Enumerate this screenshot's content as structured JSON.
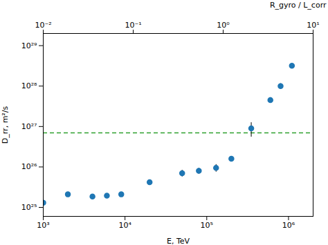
{
  "chart_data": {
    "type": "scatter",
    "xlabel": "E, TeV",
    "ylabel": "D_rr, m²/s",
    "x2label": "R_gyro / L_corr",
    "x": [
      1000,
      2000,
      4000,
      6000,
      9000,
      20000,
      50000,
      80000,
      130000,
      200000,
      350000,
      600000,
      800000,
      1100000
    ],
    "values": [
      1.3e+25,
      2.1e+25,
      1.85e+25,
      1.95e+25,
      2.1e+25,
      4.2e+25,
      7e+25,
      8e+25,
      9.5e+25,
      1.6e+26,
      9e+26,
      4.5e+27,
      1e+28,
      3.2e+28
    ],
    "error_bars": {
      "lo": [
        1.2e+24,
        2e+24,
        2e+24,
        2e+24,
        2e+24,
        5e+24,
        1.3e+25,
        1.3e+25,
        2e+25,
        2e+25,
        3.5e+26,
        7e+26,
        1.5e+27,
        4e+27
      ],
      "hi": [
        1.2e+24,
        2e+24,
        2e+24,
        2e+24,
        2e+24,
        5e+24,
        1.3e+25,
        1.3e+25,
        2e+25,
        2e+25,
        3.5e+26,
        7e+26,
        1.5e+27,
        4e+27
      ],
      "color": "#000000"
    },
    "color": "#1f77b4",
    "marker": "circle",
    "hlines": [
      {
        "y": 7e+26,
        "color": "#2ca02c",
        "line_style": "dashed"
      }
    ],
    "log": true,
    "grid": false,
    "xlim": [
      1000.0,
      2000000.0
    ],
    "xticks": [
      {
        "value": 1000.0,
        "label": "10³"
      },
      {
        "value": 10000.0,
        "label": "10⁴"
      },
      {
        "value": 100000.0,
        "label": "10⁵"
      },
      {
        "value": 1000000.0,
        "label": "10⁶"
      }
    ],
    "ylim": [
      6e+24,
      2e+29
    ],
    "yticks": [
      {
        "value": 1e+25,
        "label": "10²⁵"
      },
      {
        "value": 1e+26,
        "label": "10²⁶"
      },
      {
        "value": 1e+27,
        "label": "10²⁷"
      },
      {
        "value": 1e+28,
        "label": "10²⁸"
      },
      {
        "value": 1e+29,
        "label": "10²⁹"
      }
    ],
    "x2lim": [
      0.01,
      10
    ],
    "x2ticks": [
      {
        "value": 0.01,
        "label": "10⁻²"
      },
      {
        "value": 0.1,
        "label": "10⁻¹"
      },
      {
        "value": 1,
        "label": "10⁰"
      },
      {
        "value": 10,
        "label": "10¹"
      }
    ]
  }
}
